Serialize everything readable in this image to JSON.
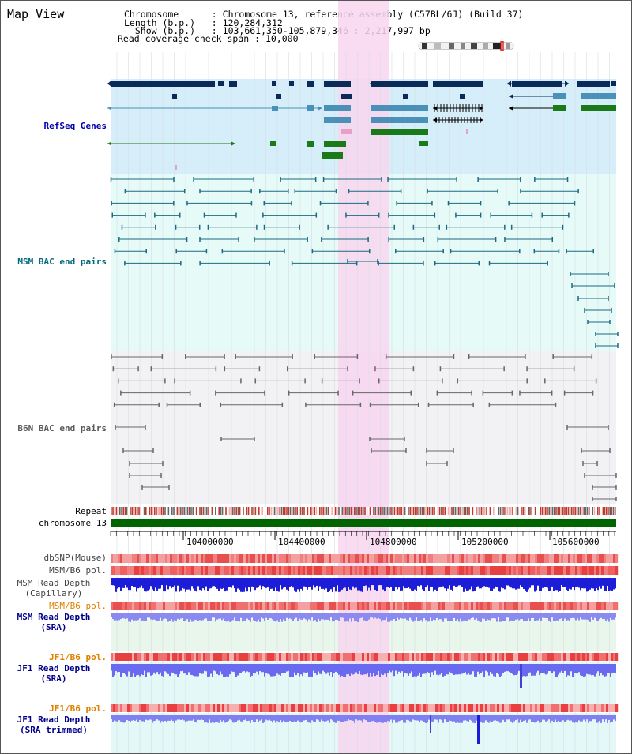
{
  "header": {
    "title": "Map View",
    "info_lines": [
      {
        "key": "Chromosome      ",
        "value": "Chromosome 13, reference assembly (C57BL/6J) (Build 37)"
      },
      {
        "key": "Length (b.p.)   ",
        "value": "120,284,312"
      },
      {
        "key": "  Show (b.p.)   ",
        "value": "103,661,350-105,879,346 : 2,217,997 bp"
      },
      {
        "key": "Read coverage check span",
        "value": "10,000"
      }
    ]
  },
  "tracks": {
    "refseq": {
      "label": "RefSeq Genes",
      "color": "#0000aa",
      "bg": "#d6eef9"
    },
    "msm_bac": {
      "label": "MSM BAC end pairs",
      "color": "#006a7c",
      "bg": "#e6faf8"
    },
    "b6n_bac": {
      "label": "B6N BAC end pairs",
      "color": "#5a5a5a",
      "bg": "#f2f2f5"
    },
    "repeat": {
      "label": "Repeat"
    },
    "chromosome": {
      "label": "chromosome 13",
      "color": "#006400"
    },
    "dbsnp": {
      "label": "dbSNP(Mouse)",
      "color": "#444444"
    },
    "msm_b6_pol_1": {
      "label": "MSM/B6 pol.",
      "color": "#444444"
    },
    "msm_depth_cap": {
      "label_line1": "MSM Read Depth",
      "label_line2": "(Capillary)",
      "color": "#444444"
    },
    "msm_b6_pol_2": {
      "label": "MSM/B6 pol.",
      "color": "#e08000"
    },
    "msm_depth_sra": {
      "label_line1": "MSM Read Depth",
      "label_line2": "(SRA)",
      "color": "#00008b"
    },
    "jf1_b6_pol_1": {
      "label": "JF1/B6 pol.",
      "color": "#e08000"
    },
    "jf1_depth_sra": {
      "label_line1": "JF1 Read Depth",
      "label_line2": "(SRA)",
      "color": "#00008b"
    },
    "jf1_b6_pol_2": {
      "label": "JF1/B6 pol.",
      "color": "#e08000"
    },
    "jf1_depth_trim": {
      "label_line1": "JF1 Read Depth",
      "label_line2": "(SRA trimmed)",
      "color": "#00008b"
    }
  },
  "axis": {
    "ticks": [
      "104000000",
      "104400000",
      "104800000",
      "105200000",
      "105600000"
    ]
  },
  "highlight": {
    "color": "#f8d6f0"
  }
}
